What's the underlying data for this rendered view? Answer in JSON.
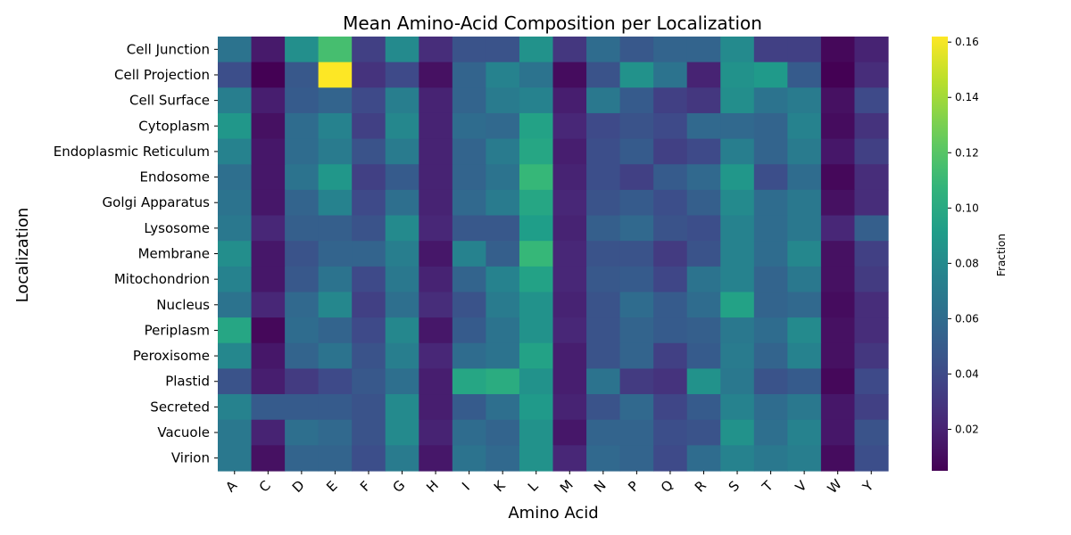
{
  "chart_data": {
    "type": "heatmap",
    "title": "Mean Amino-Acid Composition per Localization",
    "xlabel": "Amino Acid",
    "ylabel": "Localization",
    "x_categories": [
      "A",
      "C",
      "D",
      "E",
      "F",
      "G",
      "H",
      "I",
      "K",
      "L",
      "M",
      "N",
      "P",
      "Q",
      "R",
      "S",
      "T",
      "V",
      "W",
      "Y"
    ],
    "y_categories": [
      "Cell Junction",
      "Cell Projection",
      "Cell Surface",
      "Cytoplasm",
      "Endoplasmic Reticulum",
      "Endosome",
      "Golgi Apparatus",
      "Lysosome",
      "Membrane",
      "Mitochondrion",
      "Nucleus",
      "Periplasm",
      "Peroxisome",
      "Plastid",
      "Secreted",
      "Vacuole",
      "Virion"
    ],
    "colorbar": {
      "label": "Fraction",
      "range": [
        0.005,
        0.162
      ],
      "ticks": [
        0.02,
        0.04,
        0.06,
        0.08,
        0.1,
        0.12,
        0.14,
        0.16
      ],
      "tick_labels": [
        "0.02",
        "0.04",
        "0.06",
        "0.08",
        "0.10",
        "0.12",
        "0.14",
        "0.16"
      ],
      "colormap": "viridis"
    },
    "values": [
      [
        0.065,
        0.016,
        0.083,
        0.115,
        0.035,
        0.08,
        0.025,
        0.045,
        0.045,
        0.085,
        0.03,
        0.06,
        0.048,
        0.055,
        0.055,
        0.08,
        0.035,
        0.035,
        0.008,
        0.02
      ],
      [
        0.042,
        0.005,
        0.048,
        0.162,
        0.028,
        0.04,
        0.012,
        0.055,
        0.075,
        0.065,
        0.01,
        0.045,
        0.085,
        0.065,
        0.02,
        0.085,
        0.09,
        0.05,
        0.005,
        0.025
      ],
      [
        0.072,
        0.018,
        0.05,
        0.055,
        0.04,
        0.072,
        0.02,
        0.055,
        0.07,
        0.075,
        0.018,
        0.068,
        0.05,
        0.035,
        0.03,
        0.082,
        0.065,
        0.07,
        0.012,
        0.04
      ],
      [
        0.088,
        0.012,
        0.06,
        0.075,
        0.035,
        0.078,
        0.02,
        0.06,
        0.058,
        0.095,
        0.022,
        0.04,
        0.045,
        0.04,
        0.058,
        0.058,
        0.055,
        0.075,
        0.01,
        0.028
      ],
      [
        0.075,
        0.015,
        0.06,
        0.07,
        0.045,
        0.07,
        0.02,
        0.055,
        0.07,
        0.098,
        0.018,
        0.042,
        0.05,
        0.035,
        0.04,
        0.072,
        0.055,
        0.07,
        0.015,
        0.035
      ],
      [
        0.062,
        0.015,
        0.065,
        0.088,
        0.035,
        0.05,
        0.02,
        0.055,
        0.065,
        0.11,
        0.02,
        0.042,
        0.035,
        0.05,
        0.058,
        0.088,
        0.042,
        0.06,
        0.008,
        0.025
      ],
      [
        0.065,
        0.015,
        0.055,
        0.075,
        0.04,
        0.062,
        0.02,
        0.058,
        0.07,
        0.098,
        0.022,
        0.045,
        0.05,
        0.042,
        0.052,
        0.08,
        0.06,
        0.068,
        0.012,
        0.025
      ],
      [
        0.068,
        0.022,
        0.052,
        0.052,
        0.045,
        0.08,
        0.022,
        0.048,
        0.048,
        0.092,
        0.02,
        0.052,
        0.058,
        0.045,
        0.042,
        0.075,
        0.06,
        0.068,
        0.022,
        0.052
      ],
      [
        0.082,
        0.015,
        0.045,
        0.055,
        0.055,
        0.072,
        0.015,
        0.075,
        0.052,
        0.11,
        0.022,
        0.045,
        0.045,
        0.032,
        0.045,
        0.075,
        0.06,
        0.078,
        0.012,
        0.035
      ],
      [
        0.075,
        0.015,
        0.048,
        0.065,
        0.04,
        0.068,
        0.02,
        0.055,
        0.075,
        0.095,
        0.022,
        0.048,
        0.05,
        0.038,
        0.065,
        0.075,
        0.055,
        0.068,
        0.012,
        0.032
      ],
      [
        0.065,
        0.022,
        0.058,
        0.078,
        0.035,
        0.062,
        0.025,
        0.045,
        0.07,
        0.085,
        0.02,
        0.045,
        0.06,
        0.05,
        0.06,
        0.095,
        0.055,
        0.058,
        0.01,
        0.025
      ],
      [
        0.098,
        0.008,
        0.06,
        0.055,
        0.04,
        0.078,
        0.015,
        0.05,
        0.065,
        0.085,
        0.022,
        0.045,
        0.055,
        0.05,
        0.052,
        0.068,
        0.06,
        0.08,
        0.012,
        0.025
      ],
      [
        0.078,
        0.015,
        0.055,
        0.065,
        0.045,
        0.072,
        0.022,
        0.06,
        0.065,
        0.095,
        0.018,
        0.045,
        0.055,
        0.035,
        0.05,
        0.07,
        0.055,
        0.075,
        0.012,
        0.03
      ],
      [
        0.045,
        0.018,
        0.032,
        0.04,
        0.048,
        0.062,
        0.018,
        0.098,
        0.102,
        0.085,
        0.018,
        0.065,
        0.032,
        0.028,
        0.085,
        0.068,
        0.045,
        0.05,
        0.008,
        0.04
      ],
      [
        0.075,
        0.05,
        0.05,
        0.05,
        0.045,
        0.08,
        0.018,
        0.05,
        0.062,
        0.09,
        0.02,
        0.045,
        0.058,
        0.038,
        0.05,
        0.075,
        0.06,
        0.068,
        0.015,
        0.035
      ],
      [
        0.068,
        0.02,
        0.062,
        0.058,
        0.045,
        0.08,
        0.02,
        0.06,
        0.055,
        0.085,
        0.015,
        0.055,
        0.055,
        0.042,
        0.045,
        0.085,
        0.062,
        0.075,
        0.015,
        0.045
      ],
      [
        0.068,
        0.012,
        0.055,
        0.055,
        0.042,
        0.07,
        0.015,
        0.065,
        0.058,
        0.085,
        0.022,
        0.058,
        0.055,
        0.04,
        0.06,
        0.075,
        0.068,
        0.072,
        0.01,
        0.042
      ]
    ]
  }
}
